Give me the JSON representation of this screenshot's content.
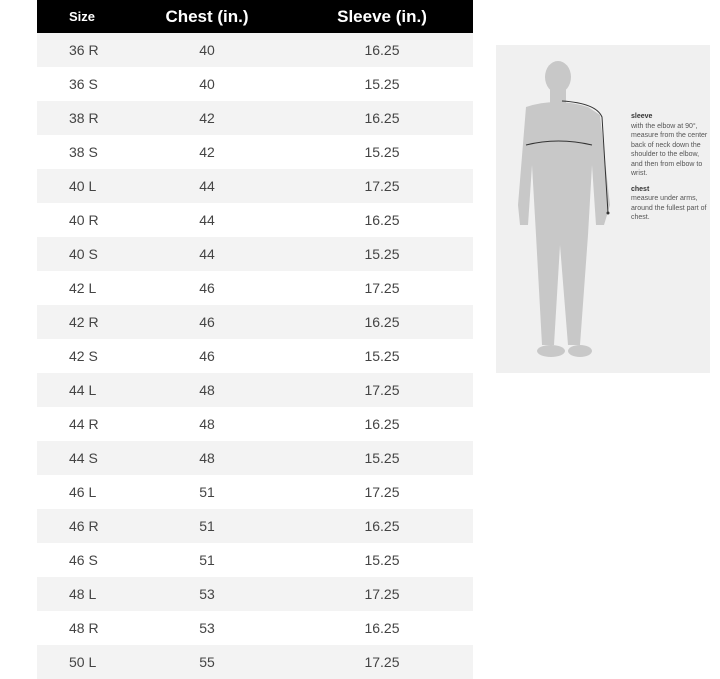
{
  "table": {
    "headers": [
      "Size",
      "Chest (in.)",
      "Sleeve (in.)"
    ],
    "rows": [
      [
        "36 R",
        "40",
        "16.25"
      ],
      [
        "36 S",
        "40",
        "15.25"
      ],
      [
        "38 R",
        "42",
        "16.25"
      ],
      [
        "38 S",
        "42",
        "15.25"
      ],
      [
        "40 L",
        "44",
        "17.25"
      ],
      [
        "40 R",
        "44",
        "16.25"
      ],
      [
        "40 S",
        "44",
        "15.25"
      ],
      [
        "42 L",
        "46",
        "17.25"
      ],
      [
        "42 R",
        "46",
        "16.25"
      ],
      [
        "42 S",
        "46",
        "15.25"
      ],
      [
        "44 L",
        "48",
        "17.25"
      ],
      [
        "44 R",
        "48",
        "16.25"
      ],
      [
        "44 S",
        "48",
        "15.25"
      ],
      [
        "46 L",
        "51",
        "17.25"
      ],
      [
        "46 R",
        "51",
        "16.25"
      ],
      [
        "46 S",
        "51",
        "15.25"
      ],
      [
        "48 L",
        "53",
        "17.25"
      ],
      [
        "48 R",
        "53",
        "16.25"
      ],
      [
        "50 L",
        "55",
        "17.25"
      ]
    ]
  },
  "figure": {
    "sleeve_title": "sleeve",
    "sleeve_text": "with the elbow at 90°, measure from the center back of neck down the shoulder to the elbow, and then from elbow to wrist.",
    "chest_title": "chest",
    "chest_text": "measure under arms, around the fullest part of chest."
  }
}
